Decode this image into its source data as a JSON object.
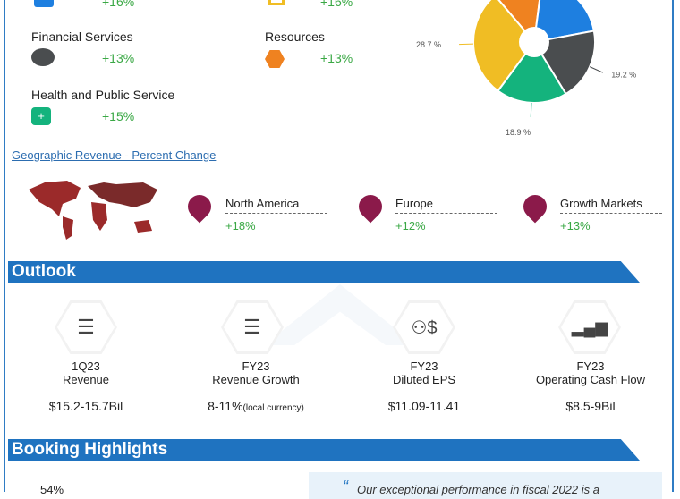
{
  "industries": [
    {
      "label": "",
      "change": "+16%",
      "icon": "megaphone-icon",
      "color": "#1e7fe0"
    },
    {
      "label": "",
      "change": "+16%",
      "icon": "cart-icon",
      "color": "#f0bd24"
    },
    {
      "label": "Financial Services",
      "change": "+13%",
      "icon": "piggy-bank-icon",
      "color": "#4a4d4f"
    },
    {
      "label": "Resources",
      "change": "+13%",
      "icon": "resources-icon",
      "color": "#ef8220"
    },
    {
      "label": "Health and Public Service",
      "change": "+15%",
      "icon": "medical-kit-icon",
      "color": "#14b37d"
    }
  ],
  "chart_data": {
    "type": "pie",
    "donut": true,
    "slices": [
      {
        "value": 13.2,
        "color": "#ef8220",
        "label": ""
      },
      {
        "value": 20.0,
        "color": "#1e7fe0",
        "label": ""
      },
      {
        "value": 19.2,
        "color": "#4a4d4f",
        "label": "19.2 %"
      },
      {
        "value": 18.9,
        "color": "#14b37d",
        "label": "18.9 %"
      },
      {
        "value": 28.7,
        "color": "#f0bd24",
        "label": "28.7 %"
      }
    ]
  },
  "geo": {
    "title": "Geographic Revenue - Percent Change",
    "regions": [
      {
        "name": "North America",
        "change": "+18%"
      },
      {
        "name": "Europe",
        "change": "+12%"
      },
      {
        "name": "Growth Markets",
        "change": "+13%"
      }
    ]
  },
  "outlook": {
    "title": "Outlook",
    "items": [
      {
        "period": "1Q23",
        "metric": "Revenue",
        "value": "$15.2-15.7Bil",
        "note": "",
        "icon": "coins-icon"
      },
      {
        "period": "FY23",
        "metric": "Revenue Growth",
        "value": "8-11%",
        "note": "(local currency)",
        "icon": "coins-icon"
      },
      {
        "period": "FY23",
        "metric": "Diluted EPS",
        "value": "$11.09-11.41",
        "note": "",
        "icon": "person-dollar-icon"
      },
      {
        "period": "FY23",
        "metric": "Operating Cash Flow",
        "value": "$8.5-9Bil",
        "note": "",
        "icon": "bar-chart-icon"
      }
    ]
  },
  "booking": {
    "title": "Booking Highlights",
    "stat": "54%",
    "quote": "Our exceptional performance in fiscal 2022 is a"
  },
  "colors": {
    "accent": "#1f73c0",
    "positive": "#3aa845",
    "map": "#9b2a2a",
    "pin": "#8b1a4a"
  }
}
